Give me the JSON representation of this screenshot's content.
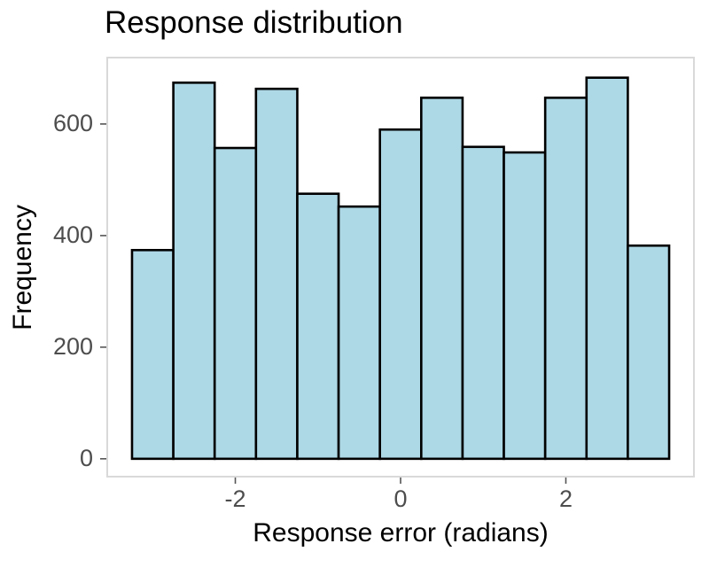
{
  "title": "Response distribution",
  "colors": {
    "background": "#FFFFFF",
    "bar_fill": "#ADD8E6",
    "bar_stroke": "#000000",
    "panel_border": "#D9D9D9",
    "tick_mark": "#555555",
    "tick_label_text": "#4D4D4D",
    "title_text": "#000000",
    "axis_title_text": "#000000"
  },
  "chart_data": {
    "type": "bar",
    "subtype": "histogram",
    "title": "Response distribution",
    "xlabel": "Response error (radians)",
    "ylabel": "Frequency",
    "bin_width": 0.5,
    "bin_centers": [
      -3,
      -2.5,
      -2,
      -1.5,
      -1,
      -0.5,
      0,
      0.5,
      1,
      1.5,
      2,
      2.5,
      3
    ],
    "values": [
      374,
      674,
      557,
      663,
      475,
      452,
      590,
      647,
      559,
      549,
      647,
      683,
      382
    ],
    "x_ticks": [
      -2,
      0,
      2
    ],
    "x_tick_labels": [
      "-2",
      "0",
      "2"
    ],
    "y_ticks": [
      0,
      200,
      400,
      600
    ],
    "y_tick_labels": [
      "0",
      "200",
      "400",
      "600"
    ],
    "xlim": [
      -3.55,
      3.55
    ],
    "ylim": [
      -32,
      719
    ],
    "grid": false,
    "legend_position": "none"
  }
}
